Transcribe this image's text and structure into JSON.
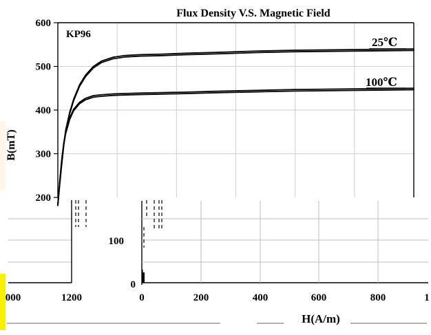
{
  "chart_data": {
    "type": "line",
    "title": "Flux Density V.S. Magnetic Field",
    "xlabel": "H(A/m)",
    "ylabel": "B(mT)",
    "annotation": "KP96",
    "upper_x_ticks": [
      "0",
      "200",
      "400",
      "600",
      "800"
    ],
    "upper_y_ticks": [
      "200",
      "300",
      "400",
      "500",
      "600"
    ],
    "lower_x_ticks_left": [
      "000",
      "1200"
    ],
    "lower_x_ticks_right": [
      "0",
      "200",
      "400",
      "600",
      "800",
      "1"
    ],
    "lower_y_ticks": [
      "0",
      "100"
    ],
    "x_range": [
      0,
      900
    ],
    "y_range": [
      200,
      600
    ],
    "grid": true,
    "series": [
      {
        "name": "25℃",
        "color": "#000000",
        "points": [
          [
            0,
            185
          ],
          [
            5,
            235
          ],
          [
            10,
            280
          ],
          [
            15,
            322
          ],
          [
            20,
            355
          ],
          [
            30,
            395
          ],
          [
            40,
            425
          ],
          [
            55,
            458
          ],
          [
            70,
            480
          ],
          [
            90,
            500
          ],
          [
            110,
            512
          ],
          [
            140,
            521
          ],
          [
            170,
            525
          ],
          [
            210,
            527
          ],
          [
            260,
            528
          ],
          [
            320,
            530
          ],
          [
            400,
            532
          ],
          [
            500,
            535
          ],
          [
            600,
            537
          ],
          [
            700,
            538
          ],
          [
            800,
            539
          ],
          [
            900,
            540
          ]
        ]
      },
      {
        "name": "100℃",
        "color": "#000000",
        "points": [
          [
            0,
            185
          ],
          [
            5,
            240
          ],
          [
            10,
            288
          ],
          [
            15,
            325
          ],
          [
            20,
            350
          ],
          [
            30,
            382
          ],
          [
            40,
            402
          ],
          [
            55,
            418
          ],
          [
            70,
            427
          ],
          [
            90,
            433
          ],
          [
            110,
            435
          ],
          [
            140,
            437
          ],
          [
            170,
            438
          ],
          [
            210,
            439
          ],
          [
            260,
            440
          ],
          [
            320,
            441
          ],
          [
            400,
            443
          ],
          [
            500,
            445
          ],
          [
            600,
            447
          ],
          [
            700,
            448
          ],
          [
            800,
            449
          ],
          [
            900,
            450
          ]
        ]
      }
    ]
  }
}
